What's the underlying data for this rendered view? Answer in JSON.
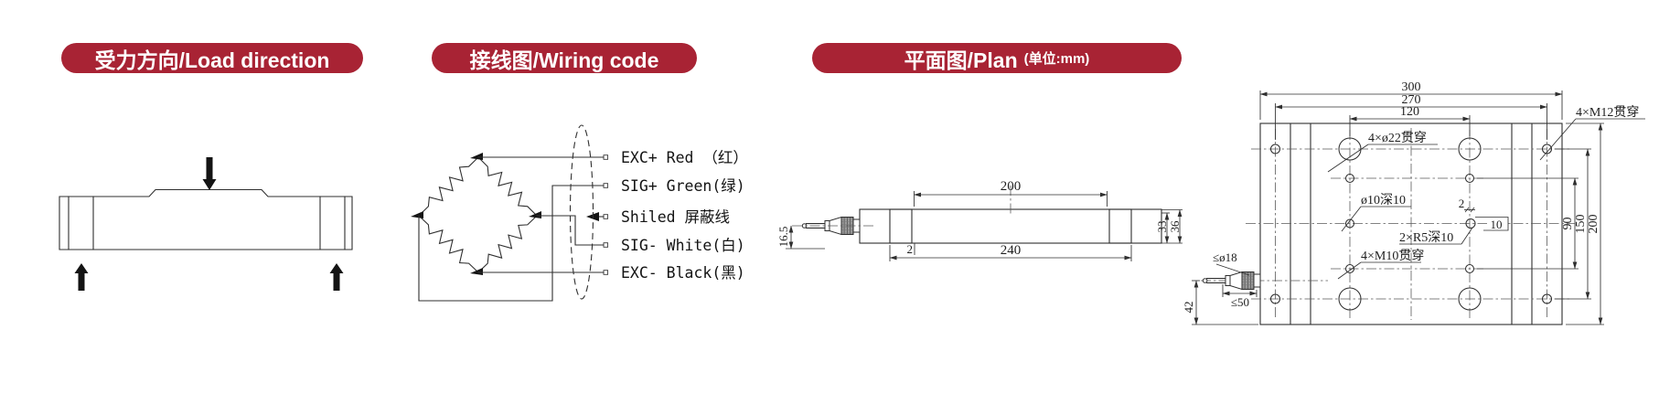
{
  "colors": {
    "accent": "#a82334",
    "ink": "#2f2f2f"
  },
  "headers": {
    "load_direction": "受力方向/Load direction",
    "wiring_code": "接线图/Wiring code",
    "plan": "平面图/Plan",
    "plan_unit": "(单位:mm)"
  },
  "wiring": {
    "labels": [
      "EXC+ Red （红）",
      "SIG+ Green(绿)",
      "Shiled  屏蔽线",
      "SIG- White(白)",
      "EXC- Black(黑)"
    ]
  },
  "side_view": {
    "dim_top_length": "200",
    "dim_bottom_length": "240",
    "dim_edge_offset": "2",
    "dim_inner_height": "33",
    "dim_outer_height": "36",
    "dim_cable_height": "16.5"
  },
  "plan_view": {
    "dim_width_outer": "300",
    "dim_width_bolt": "270",
    "dim_width_inner": "120",
    "dim_height_inner": "90",
    "dim_height_bolt": "150",
    "dim_height_outer": "200",
    "label_holes_o22": "4×ø22贯穿",
    "label_holes_m12": "4×M12贯穿",
    "label_hole_o10": "ø10深10",
    "label_slot_r5": "2×R5深10",
    "label_holes_m10": "4×M10贯穿",
    "dim_slot_width": "2",
    "dim_slot_length": "10",
    "dim_cable_dia": "≤ø18",
    "dim_cable_length": "≤50",
    "dim_cable_offset": "42"
  }
}
